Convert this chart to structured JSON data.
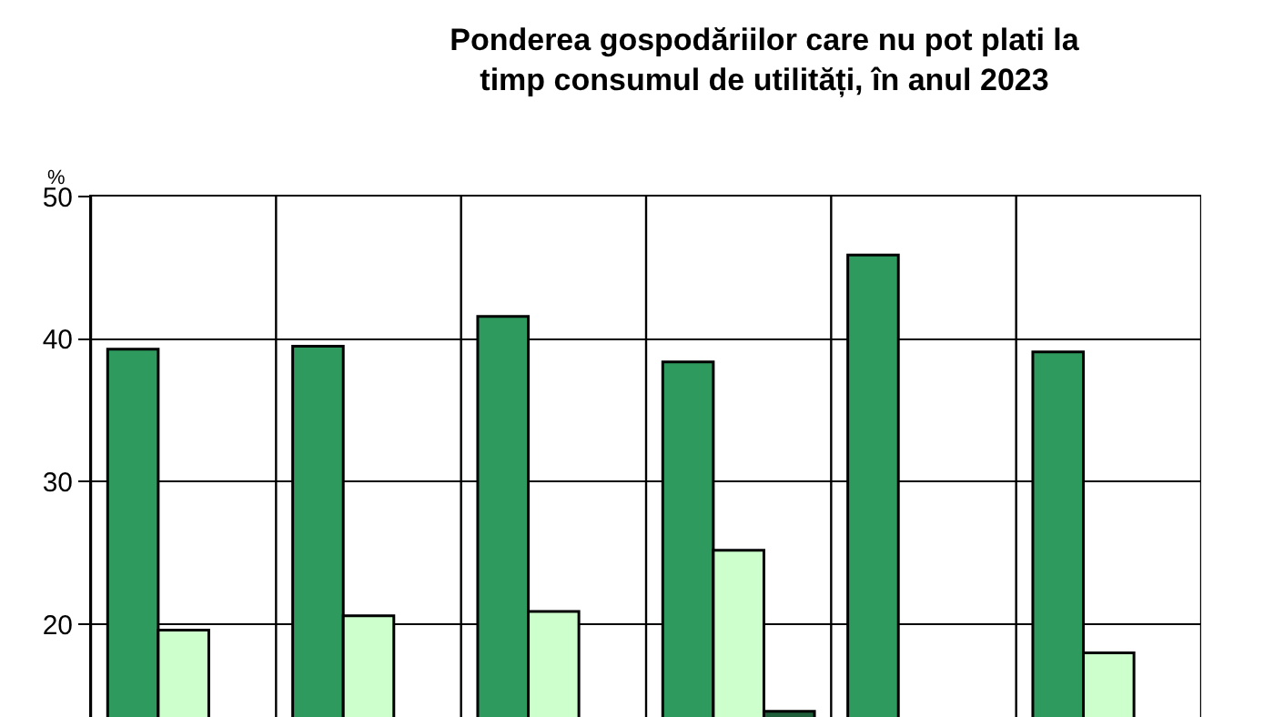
{
  "chart_data": {
    "type": "bar",
    "title": "Ponderea gospodăriilor care nu pot plati la timp consumul de utilități, în anul 2023",
    "ylabel": "%",
    "categories": [
      null,
      null,
      null,
      null,
      null,
      null
    ],
    "series": [
      {
        "color": "#2e9a5e",
        "values": [
          39.3,
          39.5,
          41.6,
          38.4,
          45.9,
          39.1
        ]
      },
      {
        "color": "#ccffcc",
        "values": [
          19.6,
          20.6,
          20.9,
          25.2,
          null,
          18.0
        ]
      },
      {
        "color": "#1f5f3a",
        "values": [
          null,
          null,
          null,
          13.9,
          null,
          null
        ]
      }
    ],
    "ylim": [
      13.5,
      50
    ],
    "yticks": [
      20,
      30,
      40,
      50
    ],
    "grid": true,
    "tick_labels": "y"
  }
}
